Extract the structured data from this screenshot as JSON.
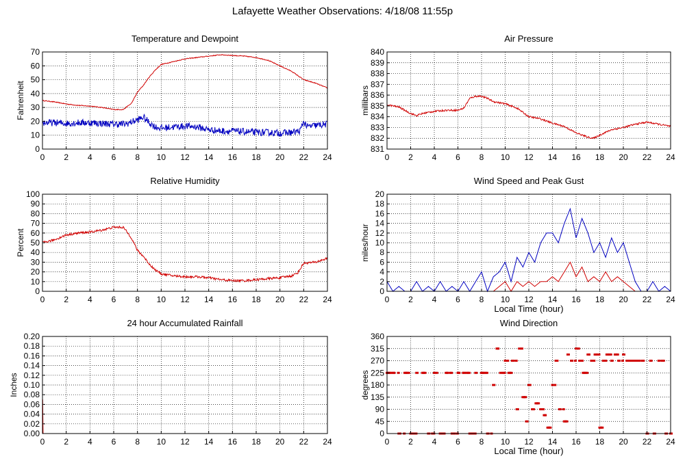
{
  "page": {
    "title": "Lafayette Weather Observations: 4/18/08 11:55p"
  },
  "colors": {
    "primary_series": "#d00000",
    "secondary_series": "#0000c0",
    "grid": "#000000"
  },
  "chart_data": [
    {
      "id": "temp",
      "type": "line",
      "title": "Temperature and Dewpoint",
      "xlabel": "",
      "ylabel": "Fahrenheit",
      "xlim": [
        0,
        24
      ],
      "xticks": [
        0,
        2,
        4,
        6,
        8,
        10,
        12,
        14,
        16,
        18,
        20,
        22,
        24
      ],
      "ylim": [
        0,
        70
      ],
      "yticks": [
        0,
        10,
        20,
        30,
        40,
        50,
        60,
        70
      ],
      "grid": true,
      "series": [
        {
          "color": "#d00000",
          "noise": 0.3,
          "x": [
            0,
            1,
            2,
            3,
            4,
            5,
            6,
            6.8,
            7.5,
            8,
            8.5,
            9,
            9.5,
            10,
            11,
            12,
            13,
            14,
            15,
            16,
            17,
            18,
            19,
            20,
            21,
            22,
            23,
            24
          ],
          "values": [
            35,
            34,
            32.5,
            31.5,
            31,
            30,
            28.5,
            28.5,
            33,
            41,
            46,
            52,
            57,
            61,
            63,
            65,
            66,
            67,
            68,
            67.5,
            67,
            66,
            64,
            60,
            56,
            50,
            47.5,
            44
          ]
        },
        {
          "color": "#0000c0",
          "noise": 2.5,
          "x": [
            0,
            1,
            2,
            3,
            4,
            5,
            6,
            7,
            8,
            8.5,
            9,
            9.5,
            10,
            11,
            12,
            13,
            14,
            15,
            16,
            17,
            18,
            19,
            20,
            21,
            21.7,
            22,
            22.3,
            23,
            24
          ],
          "values": [
            19,
            19,
            18.5,
            19,
            19,
            18.5,
            18,
            18,
            21,
            23,
            19,
            16,
            15,
            16,
            16.5,
            16,
            14,
            13,
            13,
            12.5,
            12,
            12,
            11.5,
            12,
            13,
            20,
            16,
            17,
            18
          ]
        }
      ]
    },
    {
      "id": "pressure",
      "type": "line",
      "title": "Air Pressure",
      "xlabel": "",
      "ylabel": "millibars",
      "xlim": [
        0,
        24
      ],
      "xticks": [
        0,
        2,
        4,
        6,
        8,
        10,
        12,
        14,
        16,
        18,
        20,
        22,
        24
      ],
      "ylim": [
        831,
        840
      ],
      "yticks": [
        831,
        832,
        833,
        834,
        835,
        836,
        837,
        838,
        839,
        840
      ],
      "grid": true,
      "series": [
        {
          "color": "#d00000",
          "noise": 0.08,
          "x": [
            0,
            1,
            2,
            2.5,
            3,
            4,
            5,
            6,
            6.5,
            7,
            7.5,
            8,
            8.5,
            9,
            10,
            11,
            12,
            13,
            14,
            15,
            16,
            17,
            17.5,
            18,
            19,
            20,
            21,
            22,
            23,
            24
          ],
          "values": [
            835.1,
            834.9,
            834.3,
            834.1,
            834.3,
            834.5,
            834.6,
            834.6,
            834.8,
            835.7,
            835.9,
            835.9,
            835.7,
            835.4,
            835.2,
            834.8,
            834,
            833.8,
            833.4,
            833.1,
            832.5,
            832.1,
            832.0,
            832.3,
            832.8,
            833.0,
            833.3,
            833.5,
            833.3,
            833.1
          ]
        }
      ]
    },
    {
      "id": "humidity",
      "type": "line",
      "title": "Relative Humidity",
      "xlabel": "",
      "ylabel": "Percent",
      "xlim": [
        0,
        24
      ],
      "xticks": [
        0,
        2,
        4,
        6,
        8,
        10,
        12,
        14,
        16,
        18,
        20,
        22,
        24
      ],
      "ylim": [
        0,
        100
      ],
      "yticks": [
        0,
        10,
        20,
        30,
        40,
        50,
        60,
        70,
        80,
        90,
        100
      ],
      "grid": true,
      "series": [
        {
          "color": "#d00000",
          "noise": 1.2,
          "x": [
            0,
            1,
            2,
            3,
            4,
            5,
            6,
            6.8,
            7.5,
            8,
            8.5,
            9,
            9.5,
            10,
            11,
            12,
            13,
            14,
            15,
            16,
            17,
            18,
            19,
            20,
            21,
            21.5,
            22,
            23,
            24
          ],
          "values": [
            50,
            53,
            58,
            60,
            61,
            63,
            66,
            66,
            55,
            42,
            36,
            28,
            22,
            18,
            16,
            15,
            15,
            14,
            12,
            11,
            11,
            12,
            13,
            14,
            16,
            19,
            29,
            30,
            34
          ]
        }
      ]
    },
    {
      "id": "wind-speed",
      "type": "line",
      "title": "Wind Speed and Peak Gust",
      "xlabel": "Local Time (hour)",
      "ylabel": "miles/hour",
      "xlim": [
        0,
        24
      ],
      "xticks": [
        0,
        2,
        4,
        6,
        8,
        10,
        12,
        14,
        16,
        18,
        20,
        22,
        24
      ],
      "ylim": [
        0,
        20
      ],
      "yticks": [
        0,
        2,
        4,
        6,
        8,
        10,
        12,
        14,
        16,
        18,
        20
      ],
      "grid": true,
      "series": [
        {
          "color": "#0000c0",
          "x": [
            0,
            0.5,
            1,
            1.5,
            2,
            2.5,
            3,
            3.5,
            4,
            4.5,
            5,
            5.5,
            6,
            6.5,
            7,
            7.5,
            8,
            8.5,
            9,
            9.5,
            10,
            10.5,
            11,
            11.5,
            12,
            12.5,
            13,
            13.5,
            14,
            14.5,
            15,
            15.5,
            16,
            16.5,
            17,
            17.5,
            18,
            18.5,
            19,
            19.5,
            20,
            20.5,
            21,
            21.5,
            22,
            22.5,
            23,
            23.5,
            24
          ],
          "values": [
            2,
            0,
            1,
            0,
            0,
            2,
            0,
            1,
            0,
            2,
            0,
            1,
            0,
            2,
            0,
            2,
            4,
            0,
            3,
            4,
            6,
            2,
            7,
            5,
            8,
            6,
            10,
            12,
            12,
            10,
            14,
            17,
            11,
            15,
            12,
            8,
            10,
            7,
            11,
            8,
            10,
            6,
            2,
            0,
            0,
            2,
            0,
            1,
            0
          ]
        },
        {
          "color": "#d00000",
          "x": [
            0,
            6,
            7,
            8,
            9,
            9.5,
            10,
            10.5,
            11,
            11.5,
            12,
            12.5,
            13,
            13.5,
            14,
            14.5,
            15,
            15.5,
            16,
            16.5,
            17,
            17.5,
            18,
            18.5,
            19,
            19.5,
            20,
            20.5,
            21,
            24
          ],
          "values": [
            0,
            0,
            0,
            0,
            0,
            1,
            2,
            0,
            2,
            1,
            2,
            1,
            2,
            2,
            3,
            2,
            4,
            6,
            3,
            5,
            2,
            3,
            2,
            4,
            2,
            3,
            2,
            1,
            0,
            0
          ]
        }
      ]
    },
    {
      "id": "rainfall",
      "type": "line",
      "title": "24 hour Accumulated Rainfall",
      "xlabel": "",
      "ylabel": "Inches",
      "xlim": [
        0,
        24
      ],
      "xticks": [
        0,
        2,
        4,
        6,
        8,
        10,
        12,
        14,
        16,
        18,
        20,
        22,
        24
      ],
      "ylim": [
        0,
        0.2
      ],
      "yticks": [
        "0.00",
        "0.02",
        "0.04",
        "0.06",
        "0.08",
        "0.10",
        "0.12",
        "0.14",
        "0.16",
        "0.18",
        "0.20"
      ],
      "grid": true,
      "series": [
        {
          "color": "#d00000",
          "x": [
            0,
            0.02,
            0.05,
            24
          ],
          "values": [
            0.04,
            0.07,
            0.0,
            0.0
          ]
        }
      ]
    },
    {
      "id": "wind-direction",
      "type": "scatter",
      "title": "Wind Direction",
      "xlabel": "Local Time (hour)",
      "ylabel": "degrees",
      "xlim": [
        0,
        24
      ],
      "xticks": [
        0,
        2,
        4,
        6,
        8,
        10,
        12,
        14,
        16,
        18,
        20,
        22,
        24
      ],
      "ylim": [
        0,
        360
      ],
      "yticks": [
        0,
        45,
        90,
        135,
        180,
        225,
        270,
        315,
        360
      ],
      "grid": true,
      "series": [
        {
          "color": "#d00000",
          "x": [
            0,
            0.5,
            1,
            1.5,
            2,
            2.5,
            3,
            3.5,
            4,
            4.5,
            5,
            5.5,
            6,
            6.5,
            7,
            7.5,
            8,
            8.5,
            9,
            9.3,
            9.6,
            10,
            10.3,
            10.6,
            11,
            11.2,
            11.5,
            11.8,
            12,
            12.3,
            12.6,
            13,
            13.3,
            13.6,
            14,
            14.3,
            14.6,
            15,
            15.3,
            15.6,
            16,
            16.3,
            16.6,
            17,
            17.3,
            17.6,
            18,
            18.3,
            18.6,
            19,
            19.3,
            19.6,
            20,
            20.3,
            20.6,
            21,
            21.3,
            21.6,
            22,
            22.3,
            22.6,
            23,
            23.3,
            23.6,
            24
          ],
          "values": [
            225,
            225,
            0,
            225,
            0,
            225,
            225,
            0,
            225,
            0,
            225,
            0,
            225,
            225,
            0,
            225,
            225,
            0,
            180,
            315,
            225,
            270,
            225,
            270,
            90,
            315,
            135,
            45,
            180,
            90,
            112,
            90,
            68,
            22,
            180,
            270,
            90,
            45,
            293,
            270,
            315,
            270,
            225,
            293,
            270,
            293,
            22,
            270,
            293,
            270,
            293,
            270,
            293,
            270,
            270,
            270,
            270,
            270,
            0,
            270,
            0,
            270,
            270,
            0,
            0
          ]
        }
      ]
    }
  ]
}
